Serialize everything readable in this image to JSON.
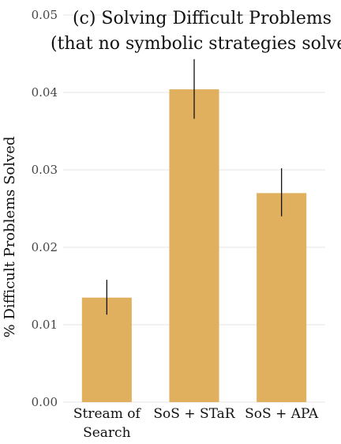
{
  "chart_data": {
    "type": "bar",
    "title": [
      "(c) Solving Difficult Problems",
      "(that no symbolic strategies solve)"
    ],
    "xlabel": "",
    "ylabel": "% Difficult Problems Solved",
    "ylim": [
      0,
      0.05
    ],
    "yticks": [
      "0.00",
      "0.01",
      "0.02",
      "0.03",
      "0.04",
      "0.05"
    ],
    "categories": [
      [
        "Stream of",
        "Search"
      ],
      [
        "SoS + STaR"
      ],
      [
        "SoS + APA"
      ]
    ],
    "values": [
      0.0135,
      0.0404,
      0.027
    ],
    "error_low": [
      0.0113,
      0.0366,
      0.024
    ],
    "error_high": [
      0.0158,
      0.0443,
      0.0302
    ],
    "bar_color": "#e0b05e",
    "grid": true
  }
}
